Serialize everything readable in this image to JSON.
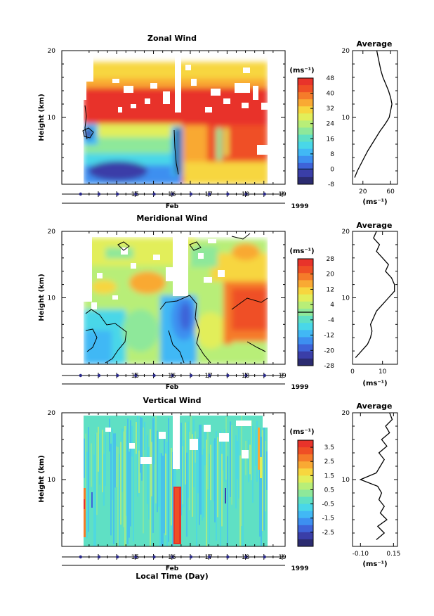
{
  "colors": {
    "scale": [
      "#2b2b70",
      "#3a3ea8",
      "#3e63d8",
      "#3d8ff0",
      "#41b8f5",
      "#49d7e8",
      "#5fe0c4",
      "#8ee89a",
      "#b8ee78",
      "#e2ee5a",
      "#f7d63f",
      "#f9a933",
      "#f57b2a",
      "#ef4f25",
      "#e8332a"
    ]
  },
  "xlabel": "Local Time (Day)",
  "chart_data": [
    {
      "type": "heatmap",
      "title": "Zonal Wind",
      "ylabel": "Height (km)",
      "x_ticks": [
        "15",
        "16",
        "17",
        "18",
        "19"
      ],
      "x_range": [
        14.1,
        19.1
      ],
      "x_month": "Feb",
      "x_year": "1999",
      "y_ticks": [
        "",
        "10",
        "20"
      ],
      "ylim": [
        0,
        20
      ],
      "colorbar": {
        "unit": "(ms⁻¹)",
        "labels": [
          "48",
          "40",
          "32",
          "24",
          "16",
          "8",
          "0",
          "-8"
        ],
        "range": [
          -8,
          48
        ],
        "contour_value": 0
      },
      "profile": {
        "title": "Average",
        "x_ticks": [
          "20",
          "60"
        ],
        "x_tick_values": [
          20,
          60
        ],
        "xlim": [
          5,
          70
        ],
        "unit": "(ms⁻¹)",
        "y_ticks": [
          "10",
          "20"
        ],
        "points": [
          [
            8,
            1
          ],
          [
            12,
            2
          ],
          [
            17,
            3
          ],
          [
            22,
            4
          ],
          [
            27,
            5
          ],
          [
            33,
            6
          ],
          [
            39,
            7
          ],
          [
            45,
            8
          ],
          [
            50,
            8.7
          ],
          [
            54,
            9.3
          ],
          [
            58,
            10
          ],
          [
            60,
            11
          ],
          [
            62,
            12
          ],
          [
            60,
            13
          ],
          [
            57,
            14
          ],
          [
            53,
            15
          ],
          [
            49,
            16
          ],
          [
            46,
            17
          ],
          [
            44,
            18
          ],
          [
            42,
            19
          ],
          [
            40,
            20
          ]
        ]
      }
    },
    {
      "type": "heatmap",
      "title": "Meridional Wind",
      "ylabel": "Height (km)",
      "x_ticks": [
        "15",
        "16",
        "17",
        "18",
        "19"
      ],
      "x_range": [
        14.1,
        19.1
      ],
      "x_month": "Feb",
      "x_year": "1999",
      "y_ticks": [
        "",
        "10",
        "20"
      ],
      "ylim": [
        0,
        20
      ],
      "colorbar": {
        "unit": "(ms⁻¹)",
        "labels": [
          "28",
          "20",
          "12",
          "4",
          "-4",
          "-12",
          "-20",
          "-28"
        ],
        "range": [
          -28,
          28
        ],
        "contour_value": 0
      },
      "profile": {
        "title": "Average",
        "x_ticks": [
          "0",
          "10"
        ],
        "x_tick_values": [
          0,
          10
        ],
        "xlim": [
          0,
          15
        ],
        "unit": "(ms⁻¹)",
        "y_ticks": [
          "10",
          "20"
        ],
        "points": [
          [
            1,
            1
          ],
          [
            3,
            2
          ],
          [
            5,
            3
          ],
          [
            6,
            4
          ],
          [
            6.5,
            5
          ],
          [
            6,
            6
          ],
          [
            7,
            7
          ],
          [
            8,
            8
          ],
          [
            10,
            9
          ],
          [
            12,
            10
          ],
          [
            14,
            11
          ],
          [
            14,
            12
          ],
          [
            13,
            13
          ],
          [
            11,
            14
          ],
          [
            12,
            15
          ],
          [
            10,
            16
          ],
          [
            8,
            17
          ],
          [
            9,
            18
          ],
          [
            7,
            19
          ],
          [
            8,
            20
          ]
        ]
      }
    },
    {
      "type": "heatmap",
      "title": "Vertical Wind",
      "ylabel": "Height (km)",
      "x_ticks": [
        "15",
        "16",
        "17",
        "18",
        "19"
      ],
      "x_range": [
        14.1,
        19.1
      ],
      "x_month": "Feb",
      "x_year": "1999",
      "y_ticks": [
        "",
        "10",
        "20"
      ],
      "ylim": [
        0,
        20
      ],
      "colorbar": {
        "unit": "(ms⁻¹)",
        "labels": [
          "3.5",
          "2.5",
          "1.5",
          "0.5",
          "-0.5",
          "-1.5",
          "-2.5"
        ],
        "range": [
          -3.5,
          4
        ],
        "contour_value": null
      },
      "profile": {
        "title": "Average",
        "x_ticks": [
          "-0.10",
          "0.15"
        ],
        "x_tick_values": [
          -0.1,
          0.15
        ],
        "xlim": [
          -0.16,
          0.18
        ],
        "unit": "(ms⁻¹)",
        "y_ticks": [
          "10",
          "20"
        ],
        "points": [
          [
            0.02,
            1
          ],
          [
            0.08,
            2
          ],
          [
            0.03,
            3
          ],
          [
            0.1,
            4
          ],
          [
            0.05,
            5
          ],
          [
            0.08,
            6
          ],
          [
            0.04,
            7
          ],
          [
            0.06,
            8
          ],
          [
            0.03,
            9
          ],
          [
            -0.1,
            10
          ],
          [
            0.02,
            11
          ],
          [
            0.05,
            12
          ],
          [
            0.08,
            13
          ],
          [
            0.04,
            14
          ],
          [
            0.1,
            15
          ],
          [
            0.06,
            16
          ],
          [
            0.12,
            17
          ],
          [
            0.09,
            18
          ],
          [
            0.14,
            19
          ],
          [
            0.12,
            20
          ]
        ]
      }
    }
  ]
}
